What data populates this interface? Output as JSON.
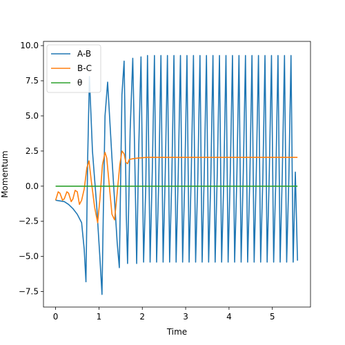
{
  "chart_data": {
    "type": "line",
    "title": "",
    "xlabel": "Time",
    "ylabel": "Momentum",
    "xlim": [
      -0.28,
      5.88
    ],
    "ylim": [
      -8.6,
      10.3
    ],
    "xticks": [
      0,
      1,
      2,
      3,
      4,
      5
    ],
    "xtick_labels": [
      "0",
      "1",
      "2",
      "3",
      "4",
      "5"
    ],
    "yticks": [
      -7.5,
      -5.0,
      -2.5,
      0.0,
      2.5,
      5.0,
      7.5,
      10.0
    ],
    "ytick_labels": [
      "−7.5",
      "−5.0",
      "−2.5",
      "0.0",
      "2.5",
      "5.0",
      "7.5",
      "10.0"
    ],
    "grid": false,
    "legend_position": "top-left",
    "series": [
      {
        "name": "A-B",
        "color": "#1f77b4",
        "x": [
          0,
          0.1,
          0.2,
          0.3,
          0.4,
          0.5,
          0.6,
          0.66,
          0.7,
          0.74,
          0.78,
          0.85,
          0.95,
          1.02,
          1.07,
          1.1,
          1.14,
          1.2,
          1.3,
          1.42,
          1.47,
          1.53,
          1.58,
          1.6,
          1.63,
          1.66,
          1.72,
          1.78,
          1.82,
          1.87,
          1.92,
          1.97,
          2.03,
          2.08,
          2.12,
          2.18,
          2.23,
          2.28,
          2.33,
          2.38,
          2.43,
          2.48,
          2.53,
          2.58,
          2.63,
          2.68,
          2.73,
          2.78,
          2.83,
          2.88,
          2.93,
          2.98,
          3.03,
          3.08,
          3.13,
          3.18,
          3.23,
          3.28,
          3.33,
          3.38,
          3.43,
          3.48,
          3.53,
          3.58,
          3.63,
          3.68,
          3.73,
          3.78,
          3.83,
          3.88,
          3.93,
          3.98,
          4.03,
          4.08,
          4.13,
          4.18,
          4.23,
          4.28,
          4.33,
          4.38,
          4.43,
          4.48,
          4.53,
          4.58,
          4.63,
          4.68,
          4.73,
          4.78,
          4.83,
          4.88,
          4.93,
          4.98,
          5.03,
          5.08,
          5.13,
          5.18,
          5.23,
          5.28,
          5.33,
          5.38,
          5.43,
          5.48,
          5.53,
          5.58
        ],
        "y": [
          -1.0,
          -1.05,
          -1.1,
          -1.3,
          -1.6,
          -2.0,
          -2.6,
          -4.5,
          -6.8,
          2.0,
          7.8,
          2.5,
          -1.5,
          -5.0,
          -7.7,
          -2.0,
          5.0,
          7.4,
          2.0,
          -4.0,
          -5.8,
          6.5,
          8.9,
          5.0,
          -2.0,
          -5.5,
          4.0,
          9.1,
          3.0,
          -5.5,
          3.0,
          9.2,
          -5.4,
          0.0,
          9.3,
          -5.4,
          1.0,
          9.3,
          -5.4,
          0.5,
          9.3,
          -5.4,
          1.0,
          9.3,
          -5.4,
          0.5,
          9.3,
          -5.4,
          1.0,
          9.3,
          -5.4,
          0.5,
          9.3,
          -5.4,
          1.0,
          9.3,
          -5.4,
          0.5,
          9.3,
          -5.4,
          1.0,
          9.3,
          -5.4,
          0.5,
          9.3,
          -5.4,
          1.0,
          9.3,
          -5.4,
          0.5,
          9.3,
          -5.4,
          1.0,
          9.3,
          -5.4,
          0.5,
          9.3,
          -5.4,
          1.0,
          9.3,
          -5.4,
          0.5,
          9.3,
          -5.4,
          1.0,
          9.3,
          -5.4,
          0.5,
          9.3,
          -5.4,
          1.0,
          9.3,
          -5.4,
          0.5,
          9.3,
          -5.4,
          1.0,
          9.3,
          -5.4,
          0.5,
          9.3,
          -5.4,
          1.0,
          -5.3
        ]
      },
      {
        "name": "B-C",
        "color": "#ff7f0e",
        "x": [
          0,
          0.06,
          0.1,
          0.16,
          0.2,
          0.26,
          0.3,
          0.36,
          0.4,
          0.45,
          0.5,
          0.55,
          0.6,
          0.66,
          0.72,
          0.77,
          0.83,
          0.9,
          0.97,
          1.02,
          1.08,
          1.14,
          1.18,
          1.24,
          1.3,
          1.36,
          1.42,
          1.48,
          1.53,
          1.58,
          1.62,
          1.66,
          1.7,
          1.78,
          1.9,
          2.1,
          2.5,
          3.0,
          4.0,
          5.0,
          5.58
        ],
        "y": [
          -1.0,
          -0.4,
          -0.5,
          -1.0,
          -0.9,
          -0.4,
          -0.5,
          -1.1,
          -0.9,
          -0.3,
          -0.4,
          -1.3,
          -1.0,
          -0.2,
          1.3,
          1.8,
          0.2,
          -1.5,
          -2.6,
          -1.0,
          1.5,
          2.4,
          2.0,
          0.0,
          -2.0,
          -2.4,
          -0.5,
          1.5,
          2.5,
          2.3,
          1.7,
          1.6,
          1.9,
          1.95,
          2.0,
          2.05,
          2.05,
          2.05,
          2.05,
          2.05,
          2.05
        ]
      },
      {
        "name": "θ",
        "color": "#2ca02c",
        "x": [
          0,
          5.58
        ],
        "y": [
          0.0,
          0.0
        ]
      }
    ]
  }
}
